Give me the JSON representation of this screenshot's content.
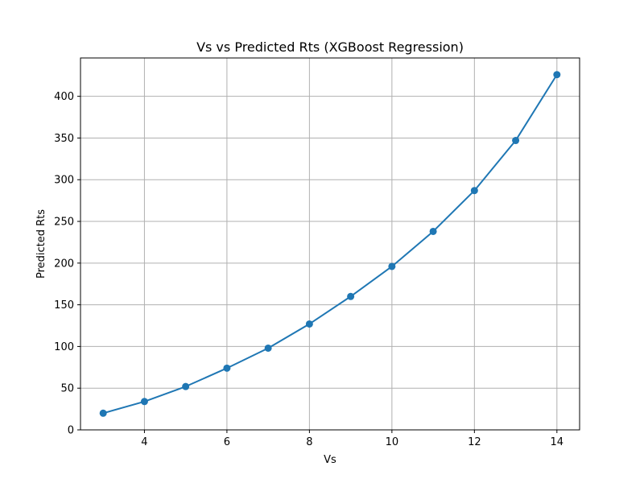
{
  "chart_data": {
    "type": "line",
    "title": "Vs vs Predicted Rts (XGBoost Regression)",
    "xlabel": "Vs",
    "ylabel": "Predicted Rts",
    "xlim": [
      2.45,
      14.55
    ],
    "ylim": [
      0,
      446
    ],
    "xticks": [
      4,
      6,
      8,
      10,
      12,
      14
    ],
    "yticks": [
      0,
      50,
      100,
      150,
      200,
      250,
      300,
      350,
      400
    ],
    "grid": true,
    "legend": "none",
    "series": [
      {
        "color": "#1f77b4",
        "marker": "circle",
        "x": [
          3,
          4,
          5,
          6,
          7,
          8,
          9,
          10,
          11,
          12,
          13,
          14
        ],
        "y": [
          20,
          34,
          52,
          74,
          98,
          127,
          160,
          196,
          238,
          287,
          347,
          426
        ]
      }
    ]
  }
}
